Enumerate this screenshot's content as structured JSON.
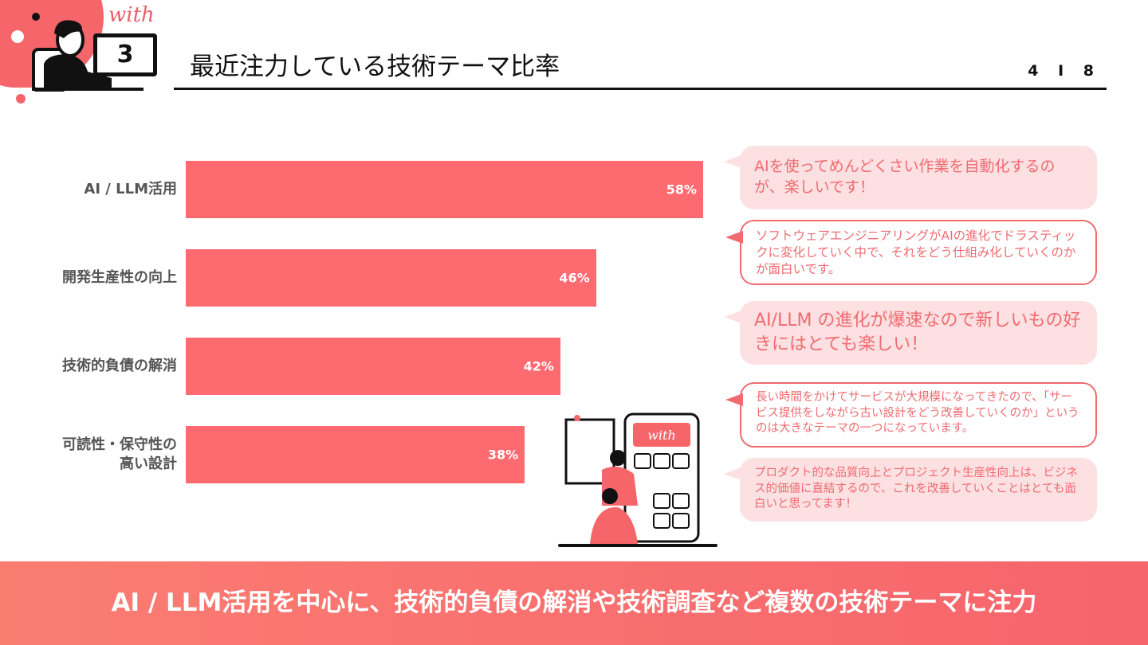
{
  "header": {
    "logo_text": "with",
    "section_number": "3",
    "title": "最近注力している技術テーマ比率",
    "page": "4",
    "page_sep": "I",
    "total": "8"
  },
  "chart_data": {
    "type": "bar",
    "orientation": "horizontal",
    "categories": [
      "AI / LLM活用",
      "開発生産性の向上",
      "技術的負債の解消",
      "可読性・保守性の高い設計"
    ],
    "category_lines": [
      [
        "AI / LLM活用"
      ],
      [
        "開発生産性の向上"
      ],
      [
        "技術的負債の解消"
      ],
      [
        "可読性・保守性の",
        "高い設計"
      ]
    ],
    "values": [
      58,
      46,
      42,
      38
    ],
    "labels": [
      "58%",
      "46%",
      "42%",
      "38%"
    ],
    "xlim": [
      0,
      58
    ],
    "unit": "%",
    "title": "",
    "xlabel": "",
    "ylabel": "",
    "grid": false,
    "color": "#fd6a6f"
  },
  "comments": [
    "AIを使ってめんどくさい作業を自動化するのが、楽しいです！",
    "ソフトウェアエンジニアリングがAIの進化でドラスティックに変化していく中で、それをどう仕組み化していくのかが面白いです。",
    "AI/LLM の進化が爆速なので新しいもの好きにはとても楽しい！",
    "長い時間をかけてサービスが大規模になってきたので、「サービス提供をしながら古い設計をどう改善していくのか」というのは大きなテーマの一つになっています。",
    "プロダクト的な品質向上とプロジェクト生産性向上は、ビジネス的価値に直結するので、これを改善していくことはとても面白いと思ってます！"
  ],
  "illustration": {
    "logo_text": "with"
  },
  "footer": {
    "summary": "AI / LLM活用を中心に、技術的負債の解消や技術調査など複数の技術テーマに注力"
  }
}
